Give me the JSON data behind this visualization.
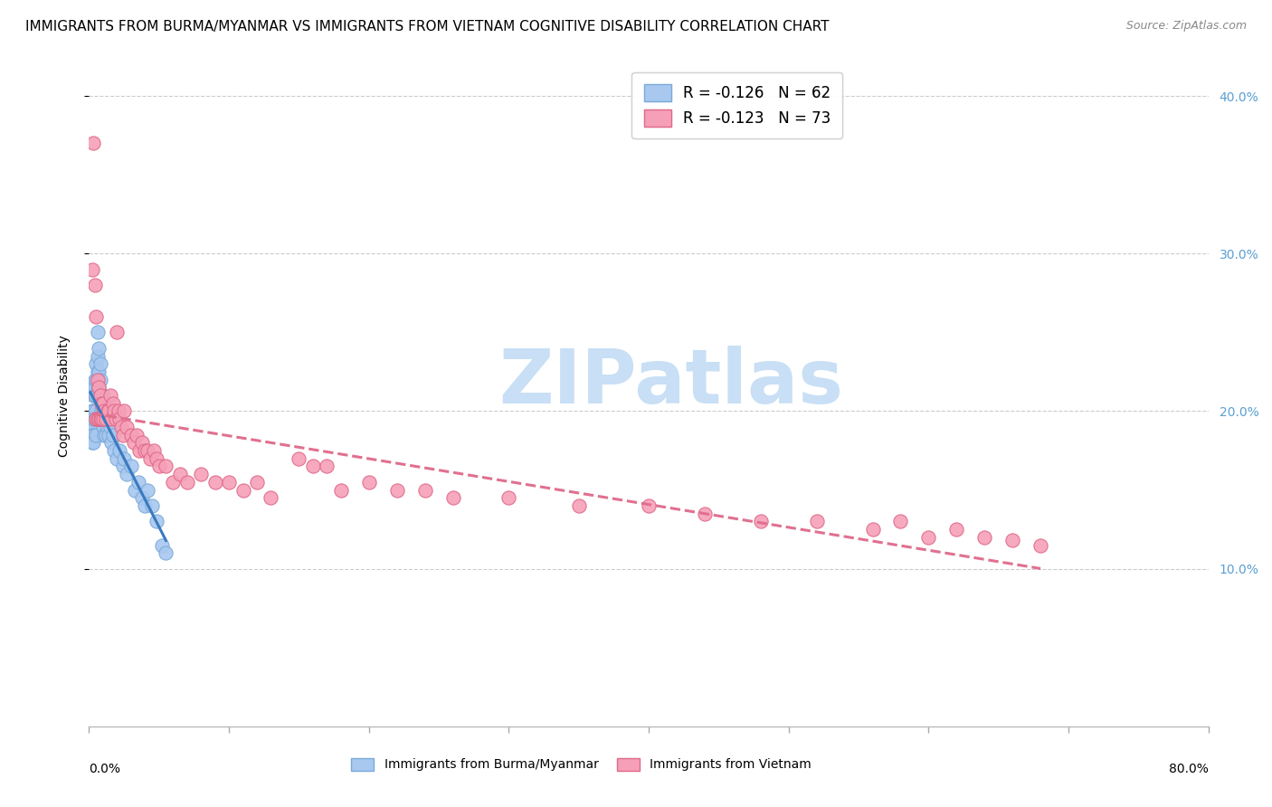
{
  "title": "IMMIGRANTS FROM BURMA/MYANMAR VS IMMIGRANTS FROM VIETNAM COGNITIVE DISABILITY CORRELATION CHART",
  "source": "Source: ZipAtlas.com",
  "ylabel": "Cognitive Disability",
  "watermark": "ZIPatlas",
  "series": [
    {
      "name": "Immigrants from Burma/Myanmar",
      "color": "#a8c8f0",
      "edge_color": "#7aaad8",
      "R": -0.126,
      "N": 62,
      "line_style": "solid",
      "line_color": "#3a7abf",
      "x": [
        0.001,
        0.001,
        0.001,
        0.002,
        0.002,
        0.002,
        0.002,
        0.003,
        0.003,
        0.003,
        0.003,
        0.003,
        0.004,
        0.004,
        0.004,
        0.004,
        0.005,
        0.005,
        0.005,
        0.005,
        0.005,
        0.005,
        0.006,
        0.006,
        0.006,
        0.006,
        0.007,
        0.007,
        0.007,
        0.008,
        0.008,
        0.008,
        0.009,
        0.009,
        0.01,
        0.01,
        0.01,
        0.011,
        0.011,
        0.012,
        0.012,
        0.013,
        0.014,
        0.015,
        0.016,
        0.017,
        0.018,
        0.02,
        0.022,
        0.024,
        0.025,
        0.027,
        0.03,
        0.033,
        0.035,
        0.038,
        0.04,
        0.042,
        0.045,
        0.048,
        0.052,
        0.055
      ],
      "y": [
        0.19,
        0.185,
        0.195,
        0.2,
        0.19,
        0.185,
        0.18,
        0.21,
        0.2,
        0.195,
        0.185,
        0.18,
        0.22,
        0.215,
        0.21,
        0.195,
        0.23,
        0.22,
        0.21,
        0.2,
        0.195,
        0.185,
        0.25,
        0.235,
        0.225,
        0.215,
        0.24,
        0.225,
        0.215,
        0.23,
        0.22,
        0.21,
        0.2,
        0.195,
        0.21,
        0.2,
        0.19,
        0.195,
        0.185,
        0.195,
        0.185,
        0.19,
        0.185,
        0.19,
        0.18,
        0.185,
        0.175,
        0.17,
        0.175,
        0.165,
        0.17,
        0.16,
        0.165,
        0.15,
        0.155,
        0.145,
        0.14,
        0.15,
        0.14,
        0.13,
        0.115,
        0.11
      ]
    },
    {
      "name": "Immigrants from Vietnam",
      "color": "#f5a0b8",
      "edge_color": "#e06888",
      "R": -0.123,
      "N": 73,
      "line_style": "dashed",
      "line_color": "#e07090",
      "x": [
        0.002,
        0.003,
        0.004,
        0.005,
        0.005,
        0.006,
        0.006,
        0.007,
        0.007,
        0.008,
        0.008,
        0.009,
        0.009,
        0.01,
        0.01,
        0.011,
        0.012,
        0.013,
        0.014,
        0.015,
        0.016,
        0.017,
        0.018,
        0.019,
        0.02,
        0.021,
        0.022,
        0.023,
        0.024,
        0.025,
        0.027,
        0.03,
        0.032,
        0.034,
        0.036,
        0.038,
        0.04,
        0.042,
        0.044,
        0.046,
        0.048,
        0.05,
        0.055,
        0.06,
        0.065,
        0.07,
        0.08,
        0.09,
        0.1,
        0.11,
        0.12,
        0.13,
        0.15,
        0.16,
        0.17,
        0.18,
        0.2,
        0.22,
        0.24,
        0.26,
        0.3,
        0.35,
        0.4,
        0.44,
        0.48,
        0.52,
        0.56,
        0.58,
        0.6,
        0.62,
        0.64,
        0.66,
        0.68
      ],
      "y": [
        0.29,
        0.37,
        0.28,
        0.26,
        0.195,
        0.22,
        0.195,
        0.215,
        0.195,
        0.21,
        0.195,
        0.205,
        0.195,
        0.205,
        0.195,
        0.2,
        0.195,
        0.2,
        0.2,
        0.21,
        0.195,
        0.205,
        0.2,
        0.195,
        0.25,
        0.2,
        0.195,
        0.19,
        0.185,
        0.2,
        0.19,
        0.185,
        0.18,
        0.185,
        0.175,
        0.18,
        0.175,
        0.175,
        0.17,
        0.175,
        0.17,
        0.165,
        0.165,
        0.155,
        0.16,
        0.155,
        0.16,
        0.155,
        0.155,
        0.15,
        0.155,
        0.145,
        0.17,
        0.165,
        0.165,
        0.15,
        0.155,
        0.15,
        0.15,
        0.145,
        0.145,
        0.14,
        0.14,
        0.135,
        0.13,
        0.13,
        0.125,
        0.13,
        0.12,
        0.125,
        0.12,
        0.118,
        0.115
      ]
    }
  ],
  "xlim": [
    0,
    0.8
  ],
  "ylim": [
    0.0,
    0.42
  ],
  "yticks": [
    0.1,
    0.2,
    0.3,
    0.4
  ],
  "ytick_labels": [
    "10.0%",
    "20.0%",
    "30.0%",
    "40.0%"
  ],
  "xtick_positions": [
    0.0,
    0.1,
    0.2,
    0.3,
    0.4,
    0.5,
    0.6,
    0.7,
    0.8
  ],
  "grid_color": "#cccccc",
  "background_color": "#ffffff",
  "title_fontsize": 11,
  "axis_label_fontsize": 10,
  "tick_fontsize": 10,
  "right_tick_color": "#5a9fd4",
  "watermark_color": "#c8dff5",
  "watermark_fontsize": 60
}
